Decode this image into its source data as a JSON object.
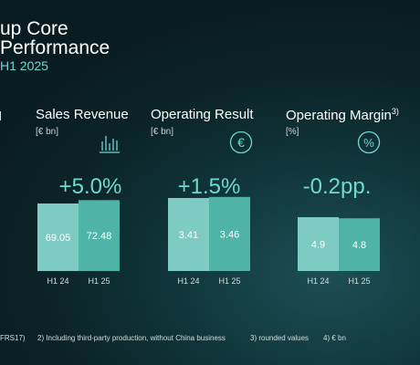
{
  "header": {
    "title_line1": "up Core",
    "title_line2": "Performance",
    "period": "H1 2025"
  },
  "colors": {
    "bar_prior": "#7ecbc3",
    "bar_current": "#4fb3a7",
    "accent": "#6fd8cf"
  },
  "panels": [
    {
      "label": "Sales Revenue",
      "unit": "[€ bn]",
      "icon": "bar-chart-icon",
      "change": "+5.0%"
    },
    {
      "label": "Operating Result",
      "unit": "[€ bn]",
      "icon": "euro-circle-icon",
      "change": "+1.5%"
    },
    {
      "label": "Operating Margin",
      "label_sup": "3)",
      "unit": "[%]",
      "icon": "percent-circle-icon",
      "change": "-0.2pp."
    }
  ],
  "chart_data": [
    {
      "type": "bar",
      "categories": [
        "H1 24",
        "H1 25"
      ],
      "values": [
        69.05,
        72.48
      ],
      "value_labels": [
        "69.05",
        "72.48"
      ],
      "title": "Sales Revenue",
      "ylabel": "[€ bn]"
    },
    {
      "type": "bar",
      "categories": [
        "H1 24",
        "H1 25"
      ],
      "values": [
        3.41,
        3.46
      ],
      "value_labels": [
        "3.41",
        "3.46"
      ],
      "title": "Operating Result",
      "ylabel": "[€ bn]"
    },
    {
      "type": "bar",
      "categories": [
        "H1 24",
        "H1 25"
      ],
      "values": [
        4.9,
        4.8
      ],
      "value_labels": [
        "4.9",
        "4.8"
      ],
      "title": "Operating Margin",
      "ylabel": "[%]"
    }
  ],
  "footnotes": [
    "FRS17)",
    "2) Including third-party production, without China business",
    "3) rounded values",
    "4) € bn"
  ]
}
